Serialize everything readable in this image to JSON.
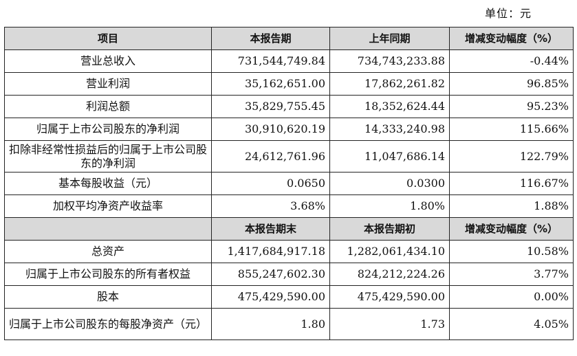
{
  "unit_label": "单位：元",
  "section1": {
    "headers": [
      "项目",
      "本报告期",
      "上年同期",
      "增减变动幅度（%）"
    ],
    "rows": [
      {
        "label": "营业总收入",
        "current": "731,544,749.84",
        "prior": "734,743,233.88",
        "change": "-0.44%"
      },
      {
        "label": "营业利润",
        "current": "35,162,651.00",
        "prior": "17,862,261.82",
        "change": "96.85%"
      },
      {
        "label": "利润总额",
        "current": "35,829,755.45",
        "prior": "18,352,624.44",
        "change": "95.23%"
      },
      {
        "label": "归属于上市公司股东的净利润",
        "current": "30,910,620.19",
        "prior": "14,333,240.98",
        "change": "115.66%"
      },
      {
        "label": "扣除非经常性损益后的归属于上市公司股东的净利润",
        "current": "24,612,761.96",
        "prior": "11,047,686.14",
        "change": "122.79%"
      },
      {
        "label": "基本每股收益（元）",
        "current": "0.0650",
        "prior": "0.0300",
        "change": "116.67%"
      },
      {
        "label": "加权平均净资产收益率",
        "current": "3.68%",
        "prior": "1.80%",
        "change": "1.88%"
      }
    ]
  },
  "section2": {
    "headers": [
      "",
      "本报告期末",
      "本报告期初",
      "增减变动幅度（%）"
    ],
    "rows": [
      {
        "label": "总资产",
        "end": "1,417,684,917.18",
        "begin": "1,282,061,434.10",
        "change": "10.58%"
      },
      {
        "label": "归属于上市公司股东的所有者权益",
        "end": "855,247,602.30",
        "begin": "824,212,224.26",
        "change": "3.77%"
      },
      {
        "label": "股本",
        "end": "475,429,590.00",
        "begin": "475,429,590.00",
        "change": "0.00%"
      },
      {
        "label": "归属于上市公司股东的每股净资产（元）",
        "end": "1.80",
        "begin": "1.73",
        "change": "4.05%"
      }
    ]
  }
}
